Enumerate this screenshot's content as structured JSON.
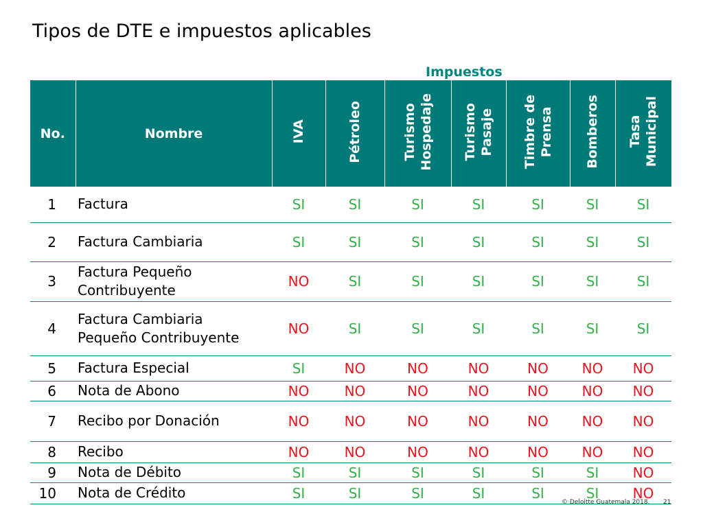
{
  "slide": {
    "title": "Tipos de DTE e impuestos aplicables",
    "group_label": "Impuestos"
  },
  "table": {
    "headers": {
      "no": "No.",
      "name": "Nombre",
      "taxes": [
        "IVA",
        "Pétroleo",
        "Turismo\nHospedaje",
        "Turismo\nPasaje",
        "Timbre de\nPrensa",
        "Bomberos",
        "Tasa\nMunicipal"
      ]
    },
    "rows": [
      {
        "no": "1",
        "name": "Factura",
        "values": [
          "SI",
          "SI",
          "SI",
          "SI",
          "SI",
          "SI",
          "SI"
        ]
      },
      {
        "no": "2",
        "name": "Factura Cambiaria",
        "values": [
          "SI",
          "SI",
          "SI",
          "SI",
          "SI",
          "SI",
          "SI"
        ]
      },
      {
        "no": "3",
        "name": "Factura Pequeño Contribuyente",
        "values": [
          "NO",
          "SI",
          "SI",
          "SI",
          "SI",
          "SI",
          "SI"
        ]
      },
      {
        "no": "4",
        "name": "Factura Cambiaria Pequeño Contribuyente",
        "values": [
          "NO",
          "SI",
          "SI",
          "SI",
          "SI",
          "SI",
          "SI"
        ]
      },
      {
        "no": "5",
        "name": "Factura Especial",
        "values": [
          "SI",
          "NO",
          "NO",
          "NO",
          "NO",
          "NO",
          "NO"
        ]
      },
      {
        "no": "6",
        "name": "Nota de Abono",
        "values": [
          "NO",
          "NO",
          "NO",
          "NO",
          "NO",
          "NO",
          "NO"
        ]
      },
      {
        "no": "7",
        "name": "Recibo por Donación",
        "values": [
          "NO",
          "NO",
          "NO",
          "NO",
          "NO",
          "NO",
          "NO"
        ]
      },
      {
        "no": "8",
        "name": "Recibo",
        "values": [
          "NO",
          "NO",
          "NO",
          "NO",
          "NO",
          "NO",
          "NO"
        ]
      },
      {
        "no": "9",
        "name": "Nota de Débito",
        "values": [
          "SI",
          "SI",
          "SI",
          "SI",
          "SI",
          "SI",
          "NO"
        ]
      },
      {
        "no": "10",
        "name": "Nota de Crédito",
        "values": [
          "SI",
          "SI",
          "SI",
          "SI",
          "SI",
          "SI",
          "NO"
        ]
      }
    ]
  },
  "colors": {
    "header_bg": "#007a79",
    "accent": "#00857f",
    "yes": "#35b04a",
    "no": "#e8141e"
  },
  "footer": {
    "copyright": "© Deloitte Guatemala 2018.",
    "page": "21"
  }
}
